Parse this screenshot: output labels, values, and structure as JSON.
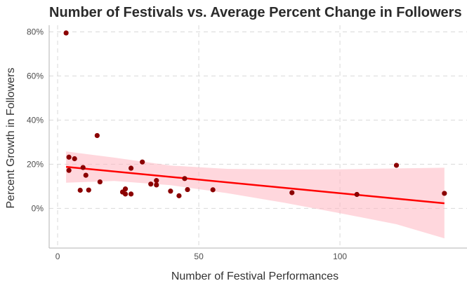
{
  "chart_data": {
    "type": "scatter",
    "title": "Number of Festivals vs. Average Percent Change in Followers",
    "xlabel": "Number of Festival Performances",
    "ylabel": "Percent Growth in Followers",
    "xlim": [
      -3,
      145
    ],
    "ylim": [
      -18,
      83
    ],
    "x_ticks": [
      0,
      50,
      100
    ],
    "x_tick_labels": [
      "0",
      "50",
      "100"
    ],
    "y_ticks": [
      0,
      20,
      40,
      60,
      80
    ],
    "y_tick_labels": [
      "0%",
      "20%",
      "40%",
      "60%",
      "80%"
    ],
    "grid": true,
    "points": [
      {
        "x": 3,
        "y": 79.5
      },
      {
        "x": 4,
        "y": 23.2
      },
      {
        "x": 6,
        "y": 22.5
      },
      {
        "x": 4,
        "y": 17.2
      },
      {
        "x": 9,
        "y": 18.5
      },
      {
        "x": 10,
        "y": 15.0
      },
      {
        "x": 8,
        "y": 8.2
      },
      {
        "x": 11,
        "y": 8.3
      },
      {
        "x": 14,
        "y": 33.0
      },
      {
        "x": 15,
        "y": 12.0
      },
      {
        "x": 23,
        "y": 7.4
      },
      {
        "x": 24,
        "y": 8.8
      },
      {
        "x": 24,
        "y": 6.5
      },
      {
        "x": 26,
        "y": 6.5
      },
      {
        "x": 26,
        "y": 18.2
      },
      {
        "x": 30,
        "y": 21.0
      },
      {
        "x": 33,
        "y": 11.0
      },
      {
        "x": 35,
        "y": 12.6
      },
      {
        "x": 35,
        "y": 10.6
      },
      {
        "x": 40,
        "y": 7.8
      },
      {
        "x": 43,
        "y": 5.7
      },
      {
        "x": 45,
        "y": 13.5
      },
      {
        "x": 46,
        "y": 8.5
      },
      {
        "x": 55,
        "y": 8.4
      },
      {
        "x": 83,
        "y": 7.1
      },
      {
        "x": 106,
        "y": 6.3
      },
      {
        "x": 120,
        "y": 19.5
      },
      {
        "x": 137,
        "y": 6.8
      }
    ],
    "trend_line": {
      "x": [
        3,
        137
      ],
      "y": [
        18.8,
        2.3
      ]
    },
    "confidence_band": {
      "x": [
        3,
        20,
        40,
        60,
        80,
        100,
        120,
        137
      ],
      "lower": [
        11.6,
        12.4,
        10.5,
        6.9,
        2.6,
        -2.2,
        -7.2,
        -13.6
      ],
      "upper": [
        25.8,
        23.0,
        19.4,
        17.9,
        17.6,
        17.7,
        18.1,
        18.4
      ]
    },
    "colors": {
      "points": "#8b0000",
      "trend_line": "#ff0000",
      "confidence_band": "#ffb6c1",
      "grid": "#d9d9d9",
      "axis": "#b3b3b3"
    }
  }
}
